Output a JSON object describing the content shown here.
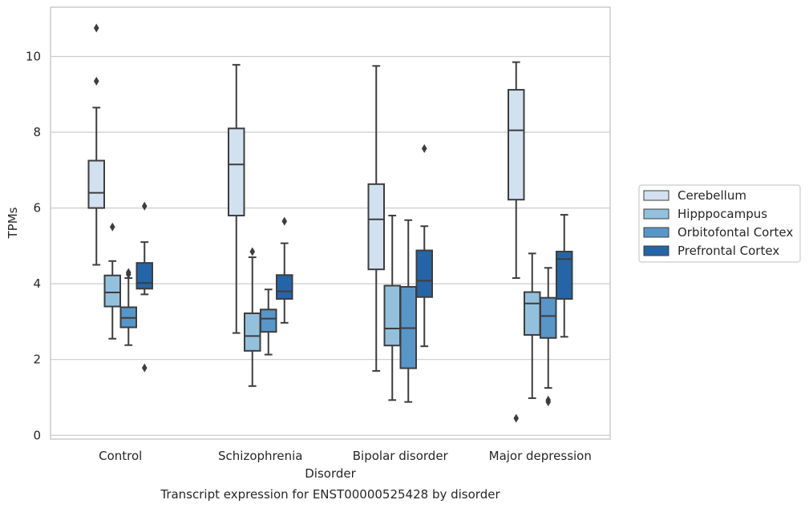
{
  "chart_data": {
    "type": "box",
    "xlabel": "Disorder",
    "ylabel": "TPMs",
    "caption": "Transcript expression for ENST00000525428 by disorder",
    "ylim": [
      -0.1,
      11.3
    ],
    "yticks": [
      0,
      2,
      4,
      6,
      8,
      10
    ],
    "grid": true,
    "legend_position": "right",
    "categories": [
      "Control",
      "Schizophrenia",
      "Bipolar disorder",
      "Major depression"
    ],
    "series": [
      {
        "name": "Cerebellum",
        "color": "#d1e1f0",
        "boxes": [
          {
            "whisker_low": 4.5,
            "q1": 6.0,
            "median": 6.4,
            "q3": 7.25,
            "whisker_high": 8.65,
            "outliers": [
              9.35,
              10.75
            ]
          },
          {
            "whisker_low": 2.7,
            "q1": 5.8,
            "median": 7.15,
            "q3": 8.1,
            "whisker_high": 9.78,
            "outliers": []
          },
          {
            "whisker_low": 1.7,
            "q1": 4.38,
            "median": 5.7,
            "q3": 6.63,
            "whisker_high": 9.75,
            "outliers": []
          },
          {
            "whisker_low": 4.15,
            "q1": 6.22,
            "median": 8.05,
            "q3": 9.12,
            "whisker_high": 9.85,
            "outliers": [
              0.45
            ]
          }
        ]
      },
      {
        "name": "Hipppocampus",
        "color": "#93c1dd",
        "boxes": [
          {
            "whisker_low": 2.55,
            "q1": 3.4,
            "median": 3.77,
            "q3": 4.22,
            "whisker_high": 4.6,
            "outliers": [
              5.5
            ]
          },
          {
            "whisker_low": 1.3,
            "q1": 2.23,
            "median": 2.62,
            "q3": 3.22,
            "whisker_high": 4.7,
            "outliers": [
              4.85
            ]
          },
          {
            "whisker_low": 0.93,
            "q1": 2.37,
            "median": 2.82,
            "q3": 3.95,
            "whisker_high": 5.8,
            "outliers": []
          },
          {
            "whisker_low": 0.98,
            "q1": 2.65,
            "median": 3.48,
            "q3": 3.78,
            "whisker_high": 4.8,
            "outliers": []
          }
        ]
      },
      {
        "name": "Orbitofontal Cortex",
        "color": "#5996c8",
        "boxes": [
          {
            "whisker_low": 2.38,
            "q1": 2.85,
            "median": 3.1,
            "q3": 3.38,
            "whisker_high": 4.15,
            "outliers": [
              4.25,
              4.3
            ]
          },
          {
            "whisker_low": 2.13,
            "q1": 2.73,
            "median": 3.08,
            "q3": 3.32,
            "whisker_high": 3.85,
            "outliers": []
          },
          {
            "whisker_low": 0.88,
            "q1": 1.77,
            "median": 2.83,
            "q3": 3.92,
            "whisker_high": 5.68,
            "outliers": []
          },
          {
            "whisker_low": 1.25,
            "q1": 2.57,
            "median": 3.15,
            "q3": 3.63,
            "whisker_high": 4.42,
            "outliers": [
              0.88,
              0.93
            ]
          }
        ]
      },
      {
        "name": "Prefrontal Cortex",
        "color": "#2565a7",
        "boxes": [
          {
            "whisker_low": 3.72,
            "q1": 3.87,
            "median": 4.02,
            "q3": 4.55,
            "whisker_high": 5.1,
            "outliers": [
              1.78,
              6.05
            ]
          },
          {
            "whisker_low": 2.97,
            "q1": 3.6,
            "median": 3.8,
            "q3": 4.23,
            "whisker_high": 5.07,
            "outliers": [
              5.65
            ]
          },
          {
            "whisker_low": 2.35,
            "q1": 3.65,
            "median": 4.08,
            "q3": 4.88,
            "whisker_high": 5.52,
            "outliers": [
              7.57
            ]
          },
          {
            "whisker_low": 2.6,
            "q1": 3.6,
            "median": 4.65,
            "q3": 4.85,
            "whisker_high": 5.82,
            "outliers": []
          }
        ]
      }
    ]
  }
}
